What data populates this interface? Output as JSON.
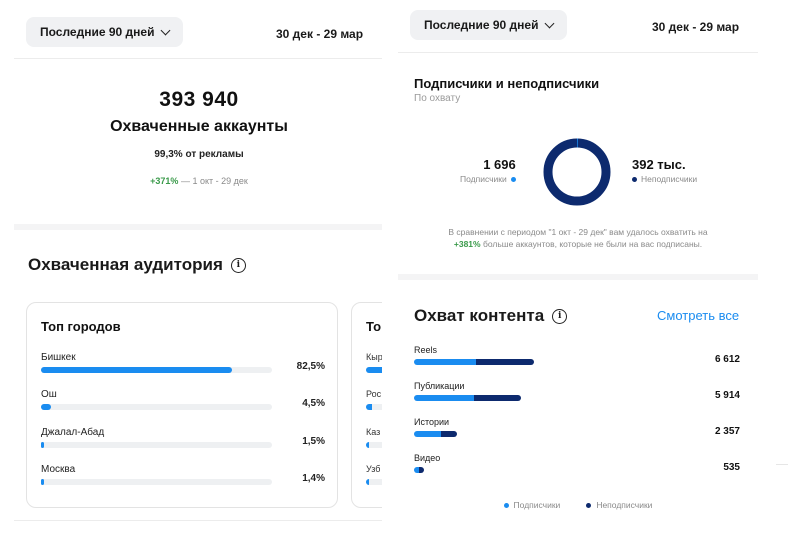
{
  "left": {
    "range_label": "Последние 90 дней",
    "date_range": "30 дек - 29 мар",
    "accounts_reached": "393 940",
    "accounts_label": "Охваченные аккаунты",
    "ads_share": "99,3% от рекламы",
    "growth": "+371%",
    "growth_period": " — 1 окт - 29 дек",
    "audience_title": "Охваченная аудитория",
    "top_cities": {
      "title": "Топ городов",
      "items": [
        {
          "name": "Бишкек",
          "pct": "82,5%",
          "fill": 0.825
        },
        {
          "name": "Ош",
          "pct": "4,5%",
          "fill": 0.045
        },
        {
          "name": "Джалал-Абад",
          "pct": "1,5%",
          "fill": 0.015
        },
        {
          "name": "Москва",
          "pct": "1,4%",
          "fill": 0.014
        }
      ]
    },
    "card2": {
      "title": "То",
      "items": [
        "Кыр",
        "Рос",
        "Каз",
        "Узб"
      ]
    }
  },
  "right": {
    "range_label": "Последние 90 дней",
    "date_range": "30 дек - 29 мар",
    "followers_title": "Подписчики и неподписчики",
    "followers_sub": "По охвату",
    "followers_value": "1 696",
    "followers_label": "Подписчики",
    "nonfollowers_value": "392 тыс.",
    "nonfollowers_label": "Неподписчики",
    "follower_share": 0.0043,
    "comparison_text": "В сравнении с периодом \"1 окт - 29 дек\" вам удалось охватить на",
    "comparison_pct": "+381%",
    "comparison_rest": " больше аккаунтов, которые не были на вас подписаны.",
    "content_title": "Охват контента",
    "see_all": "Смотреть все",
    "content": [
      {
        "label": "Reels",
        "value": "6 612",
        "followers_share": 0.52,
        "total": 6612
      },
      {
        "label": "Публикации",
        "value": "5 914",
        "followers_share": 0.56,
        "total": 5914
      },
      {
        "label": "Истории",
        "value": "2 357",
        "followers_share": 0.62,
        "total": 2357
      },
      {
        "label": "Видео",
        "value": "535",
        "followers_share": 0.5,
        "total": 535
      }
    ],
    "legend_followers": "Подписчики",
    "legend_nonfollowers": "Неподписчики"
  },
  "colors": {
    "accent": "#1a8cf0",
    "navy": "#0d2a6e",
    "green": "#3a9a4a"
  }
}
